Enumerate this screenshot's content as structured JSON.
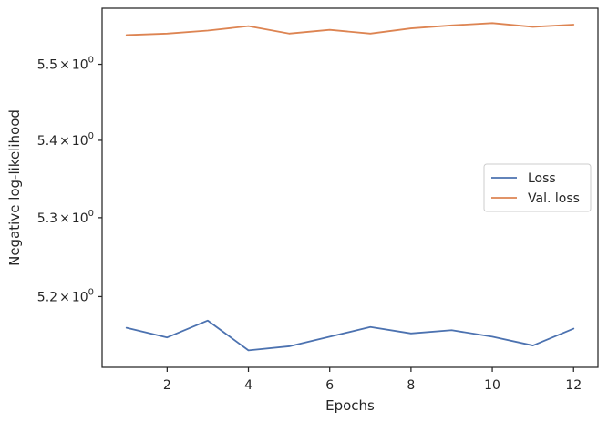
{
  "chart_data": {
    "type": "line",
    "x": [
      1,
      2,
      3,
      4,
      5,
      6,
      7,
      8,
      9,
      10,
      11,
      12
    ],
    "series": [
      {
        "name": "Loss",
        "color": "#4c72b0",
        "values": [
          5.161,
          5.149,
          5.17,
          5.133,
          5.138,
          5.15,
          5.162,
          5.154,
          5.158,
          5.15,
          5.139,
          5.16
        ]
      },
      {
        "name": "Val. loss",
        "color": "#dd8452",
        "values": [
          5.539,
          5.541,
          5.545,
          5.551,
          5.541,
          5.546,
          5.541,
          5.548,
          5.552,
          5.555,
          5.55,
          5.553
        ]
      }
    ],
    "xlabel": "Epochs",
    "ylabel": "Negative log-likelihood",
    "xlim": [
      0.4,
      12.6
    ],
    "ylim": [
      5.112,
      5.575
    ],
    "y_scale": "log",
    "xticks": [
      2,
      4,
      6,
      8,
      10,
      12
    ],
    "xtick_labels": [
      "2",
      "4",
      "6",
      "8",
      "10",
      "12"
    ],
    "yticks": [
      5.2,
      5.3,
      5.4,
      5.5
    ],
    "ytick_labels": [
      {
        "mantissa": "5.2",
        "base": "10",
        "exp": "0"
      },
      {
        "mantissa": "5.3",
        "base": "10",
        "exp": "0"
      },
      {
        "mantissa": "5.4",
        "base": "10",
        "exp": "0"
      },
      {
        "mantissa": "5.5",
        "base": "10",
        "exp": "0"
      }
    ],
    "legend_position": "center-right",
    "grid": false
  }
}
